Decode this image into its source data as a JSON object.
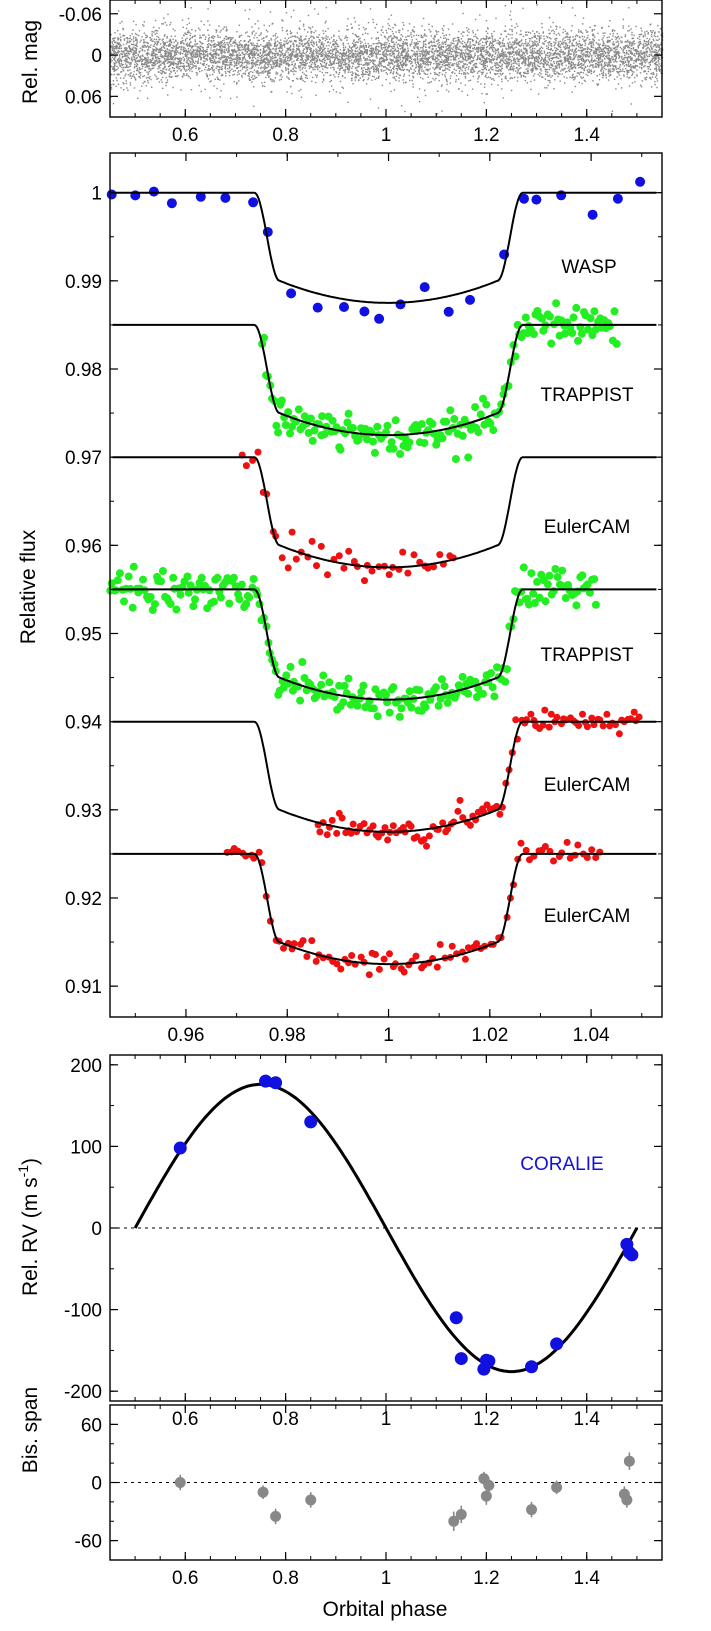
{
  "chart_data": [
    {
      "type": "scatter",
      "panel": "wasp-photometry",
      "ylabel": "Rel. mag",
      "xlim": [
        0.45,
        1.55
      ],
      "ylim": [
        -0.08,
        0.09
      ],
      "y_inverted": true,
      "x_ticks": [
        "0.6",
        "0.8",
        "1",
        "1.2",
        "1.4"
      ],
      "y_ticks": [
        "-0.06",
        "0",
        "0.06"
      ],
      "point_color": "#888888",
      "scatter_sigma": 0.018
    },
    {
      "type": "scatter",
      "panel": "transit-lightcurves",
      "ylabel": "Relative flux",
      "xlim": [
        0.945,
        1.054
      ],
      "ylim": [
        0.9065,
        1.0045
      ],
      "x_ticks": [
        "0.96",
        "0.98",
        "1",
        "1.02",
        "1.04"
      ],
      "y_ticks": [
        "1",
        "0.99",
        "0.98",
        "0.97",
        "0.96",
        "0.95",
        "0.94",
        "0.93",
        "0.92",
        "0.91"
      ],
      "transit_model": {
        "center": 1.0,
        "t1": 0.9735,
        "t2": 0.9785,
        "depth": 0.0125
      },
      "series": [
        {
          "name": "WASP",
          "color": "#1010e0",
          "baseline": 1.0,
          "range": [
            0.945,
            1.052
          ],
          "step": 0.0045,
          "noise": 0.0011,
          "point_radius": 5
        },
        {
          "name": "TRAPPIST",
          "color": "#22ee22",
          "baseline": 0.985,
          "range": [
            0.975,
            1.045
          ],
          "step": 0.0004,
          "noise": 0.0011,
          "point_radius": 4
        },
        {
          "name": "EulerCAM",
          "color": "#ee1111",
          "baseline": 0.97,
          "range": [
            0.971,
            1.013
          ],
          "step": 0.001,
          "noise": 0.0008,
          "point_radius": 3.5
        },
        {
          "name": "TRAPPIST",
          "color": "#22ee22",
          "baseline": 0.955,
          "range": [
            0.945,
            1.041
          ],
          "step": 0.0004,
          "noise": 0.0011,
          "point_radius": 4
        },
        {
          "name": "EulerCAM",
          "color": "#ee1111",
          "baseline": 0.94,
          "range": [
            0.986,
            1.05
          ],
          "step": 0.0006,
          "noise": 0.0007,
          "point_radius": 3.5
        },
        {
          "name": "EulerCAM",
          "color": "#ee1111",
          "baseline": 0.925,
          "range": [
            0.968,
            1.042
          ],
          "step": 0.0008,
          "noise": 0.0006,
          "point_radius": 3.5
        }
      ]
    },
    {
      "type": "scatter",
      "panel": "radial-velocity",
      "ylabel_main": "Rel. RV (m s",
      "ylabel_sup": "-1",
      "ylabel_close": ")",
      "annotation": "CORALIE",
      "annotation_color": "#1010e0",
      "xlim": [
        0.45,
        1.55
      ],
      "ylim": [
        -212,
        212
      ],
      "x_ticks": [
        "0.6",
        "0.8",
        "1",
        "1.2",
        "1.4"
      ],
      "y_ticks": [
        "200",
        "100",
        "0",
        "-100",
        "-200"
      ],
      "model": {
        "amplitude": 176,
        "x_start": 0.5,
        "x_end": 1.5
      },
      "zero_line": true,
      "points": [
        {
          "x": 0.59,
          "y": 98
        },
        {
          "x": 0.76,
          "y": 180
        },
        {
          "x": 0.78,
          "y": 178
        },
        {
          "x": 0.85,
          "y": 130
        },
        {
          "x": 1.14,
          "y": -110
        },
        {
          "x": 1.15,
          "y": -160
        },
        {
          "x": 1.195,
          "y": -173
        },
        {
          "x": 1.2,
          "y": -162
        },
        {
          "x": 1.205,
          "y": -163
        },
        {
          "x": 1.29,
          "y": -170
        },
        {
          "x": 1.34,
          "y": -142
        },
        {
          "x": 1.48,
          "y": -20
        },
        {
          "x": 1.485,
          "y": -30
        },
        {
          "x": 1.49,
          "y": -33
        }
      ]
    },
    {
      "type": "scatter",
      "panel": "bisector-span",
      "ylabel": "Bis. span",
      "xlabel": "Orbital phase",
      "xlim": [
        0.45,
        1.55
      ],
      "ylim": [
        -80,
        80
      ],
      "x_ticks": [
        "0.6",
        "0.8",
        "1",
        "1.2",
        "1.4"
      ],
      "y_ticks": [
        "60",
        "0",
        "-60"
      ],
      "zero_line": true,
      "points": [
        {
          "x": 0.59,
          "y": 0,
          "err": 8
        },
        {
          "x": 0.755,
          "y": -10,
          "err": 7
        },
        {
          "x": 0.78,
          "y": -35,
          "err": 8
        },
        {
          "x": 0.85,
          "y": -18,
          "err": 8
        },
        {
          "x": 1.135,
          "y": -40,
          "err": 10
        },
        {
          "x": 1.15,
          "y": -33,
          "err": 9
        },
        {
          "x": 1.195,
          "y": 4,
          "err": 7
        },
        {
          "x": 1.2,
          "y": -14,
          "err": 9
        },
        {
          "x": 1.205,
          "y": -3,
          "err": 8
        },
        {
          "x": 1.29,
          "y": -28,
          "err": 8
        },
        {
          "x": 1.34,
          "y": -5,
          "err": 7
        },
        {
          "x": 1.475,
          "y": -12,
          "err": 8
        },
        {
          "x": 1.48,
          "y": -18,
          "err": 8
        },
        {
          "x": 1.485,
          "y": 22,
          "err": 9
        }
      ]
    }
  ]
}
